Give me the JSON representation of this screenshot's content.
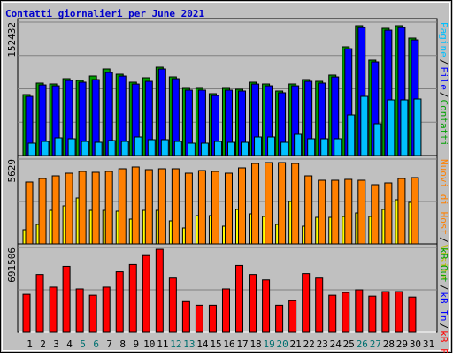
{
  "chart_data": {
    "type": "bar",
    "title": "Contatti giornalieri per June 2021",
    "categories": [
      "1",
      "2",
      "3",
      "4",
      "5",
      "6",
      "7",
      "8",
      "9",
      "10",
      "11",
      "12",
      "13",
      "14",
      "15",
      "16",
      "17",
      "18",
      "19",
      "20",
      "21",
      "22",
      "23",
      "24",
      "25",
      "26",
      "27",
      "28",
      "29",
      "30",
      "31"
    ],
    "category_colors": [
      "#000",
      "#000",
      "#000",
      "#000",
      "#007070",
      "#007070",
      "#000",
      "#000",
      "#000",
      "#000",
      "#000",
      "#007070",
      "#007070",
      "#000",
      "#000",
      "#000",
      "#000",
      "#000",
      "#007070",
      "#007070",
      "#000",
      "#000",
      "#000",
      "#000",
      "#000",
      "#007070",
      "#007070",
      "#000",
      "#000",
      "#000",
      "#000"
    ],
    "grid_divisions": [
      4,
      2,
      2
    ],
    "panels": [
      {
        "ylim": [
          0,
          152432
        ],
        "yticks": [
          152432
        ],
        "series": [
          {
            "name": "Contatti",
            "color": "#00a000",
            "values": [
              69656,
              82779,
              81770,
              87827,
              85808,
              90855,
              98931,
              92874,
              83789,
              88836,
              100950,
              89846,
              76722,
              76722,
              70665,
              76722,
              75713,
              83789,
              81770,
              73694,
              81770,
              86817,
              84798,
              91865,
              124169,
              148397,
              109026,
              145369,
              148397,
              134264,
              null
            ]
          },
          {
            "name": "File",
            "color": "#0000ff",
            "values": [
              67600,
              80700,
              79700,
              85800,
              83800,
              86800,
              94900,
              90800,
              81700,
              84800,
              98900,
              87800,
              74700,
              74700,
              68600,
              74700,
              73700,
              81700,
              79700,
              71700,
              79700,
              84800,
              82800,
              89800,
              122100,
              146300,
              107000,
              143300,
              146300,
              132200,
              null
            ]
          },
          {
            "name": "Pagine",
            "color": "#00c0ff",
            "values": [
              14133,
              16152,
              20190,
              19181,
              16152,
              15143,
              17162,
              16152,
              21200,
              18171,
              18171,
              16152,
              14133,
              14133,
              16152,
              15143,
              15143,
              21200,
              21200,
              15143,
              24228,
              19181,
              19181,
              19181,
              46437,
              67637,
              36342,
              63599,
              63599,
              64608,
              null
            ]
          }
        ]
      },
      {
        "ylim": [
          0,
          5629
        ],
        "yticks": [
          5629
        ],
        "series": [
          {
            "name": "Visite",
            "color": "#ffff00",
            "values": [
              938,
              1290,
              2228,
              2522,
              3049,
              2228,
              2228,
              2170,
              1642,
              2228,
              2228,
              1525,
              1056,
              1877,
              1877,
              1173,
              2287,
              1994,
              1818,
              1290,
              2815,
              1173,
              1759,
              1759,
              1818,
              2052,
              1818,
              2287,
              2932,
              2756,
              null
            ]
          },
          {
            "name": "Nuovi di Host",
            "color": "#ff8000",
            "values": [
              4105,
              4339,
              4515,
              4691,
              4808,
              4750,
              4808,
              4984,
              5102,
              4926,
              4984,
              4984,
              4691,
              4867,
              4808,
              4691,
              5043,
              5336,
              5395,
              5395,
              5336,
              4515,
              4222,
              4222,
              4281,
              4222,
              3929,
              4046,
              4339,
              4398,
              null
            ]
          }
        ]
      },
      {
        "ylim": [
          0,
          691506
        ],
        "yticks": [
          691506
        ],
        "labels": [
          {
            "text": "kB Out",
            "color": "#00a000"
          },
          {
            "text": "kB In",
            "color": "#0000ff"
          }
        ],
        "series": [
          {
            "name": "kB F",
            "color": "#ff0000",
            "values": [
              308969,
              470810,
              367820,
              537017,
              353107,
              301612,
              367820,
              492879,
              551730,
              625294,
              676789,
              441384,
              250118,
              220692,
              220692,
              353107,
              544366,
              470810,
              426671,
              220692,
              257474,
              478166,
              441384,
              301612,
              323682,
              345751,
              294256,
              331038,
              331038,
              286900,
              null
            ]
          }
        ]
      }
    ]
  }
}
